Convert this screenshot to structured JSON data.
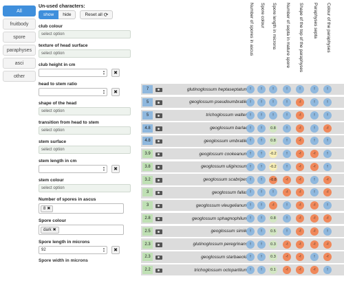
{
  "categories": [
    {
      "label": "All",
      "active": true
    },
    {
      "label": "fruitbody",
      "active": false
    },
    {
      "label": "spore",
      "active": false
    },
    {
      "label": "paraphyses",
      "active": false
    },
    {
      "label": "asci",
      "active": false
    },
    {
      "label": "other",
      "active": false
    }
  ],
  "unused": {
    "label": "Un-used characters:",
    "show": "show",
    "hide": "hide",
    "reset": "Reset all",
    "reset_icon": "⟳"
  },
  "filters": [
    {
      "label": "club colour",
      "type": "select",
      "value": "select option"
    },
    {
      "label": "texture of head surface",
      "type": "select",
      "value": "select option"
    },
    {
      "label": "club height in cm",
      "type": "number",
      "value": ""
    },
    {
      "label": "head to stem ratio",
      "type": "number",
      "value": ""
    },
    {
      "label": "shape of the head",
      "type": "select",
      "value": "select option"
    },
    {
      "label": "transition from head to stem",
      "type": "select",
      "value": "select option"
    },
    {
      "label": "stem surface",
      "type": "select",
      "value": "select option"
    },
    {
      "label": "stem length in cm",
      "type": "number",
      "value": ""
    },
    {
      "label": "stem colour",
      "type": "select",
      "value": "select option"
    },
    {
      "label": "Number of spores in ascus",
      "type": "tag",
      "value": "8"
    },
    {
      "label": "Spore colour",
      "type": "tag",
      "value": "dark"
    },
    {
      "label": "Spore length in microns",
      "type": "number",
      "value": "92"
    }
  ],
  "cutoff_label": "Spore width in microns",
  "columns": [
    "Number of spores in ascus",
    "Spore colour",
    "Spore length in microns",
    "Number of septa in mature spore",
    "Shape of the top of the paraphyses",
    "Paraphyses septa",
    "Colour of the paraphyses"
  ],
  "rows": [
    {
      "score": "7",
      "name": "glutinoglossum heptaseptatum",
      "cells": [
        "!",
        "!",
        "!",
        "!",
        "!",
        "!",
        "!"
      ]
    },
    {
      "score": "5",
      "name": "geoglossum pseudoumbratile",
      "cells": [
        "!",
        "!",
        "!",
        "!",
        "-!",
        "!",
        "!"
      ]
    },
    {
      "score": "5",
      "name": "trichoglossum walteri",
      "cells": [
        "!",
        "!",
        "!",
        "!",
        "-!",
        "!",
        "!"
      ]
    },
    {
      "score": "4.8",
      "name": "geoglossum barlae",
      "cells": [
        "!",
        "!",
        "0.8",
        "!",
        "-!",
        "!",
        "-!"
      ]
    },
    {
      "score": "4.8",
      "name": "geoglossum umbratile",
      "cells": [
        "!",
        "!",
        "0.8",
        "!",
        "-!",
        "!",
        "!"
      ]
    },
    {
      "score": "3.9",
      "name": "geoglossum cookeanum",
      "cells": [
        "!",
        "!",
        "-0.2",
        "!",
        "-!",
        "-!",
        "!"
      ]
    },
    {
      "score": "3.8",
      "name": "geoglossum uliginosum",
      "cells": [
        "!",
        "!",
        "-0.2",
        "!",
        "-!",
        "-!",
        "!"
      ]
    },
    {
      "score": "3.2",
      "name": "geoglossum scabripes",
      "cells": [
        "!",
        "!",
        "-0.8",
        "-!",
        "-!",
        "!",
        "-!"
      ]
    },
    {
      "score": "3",
      "name": "geoglossum fallax",
      "cells": [
        "!",
        "!",
        "!",
        "-!",
        "-!",
        "!",
        "-!"
      ]
    },
    {
      "score": "3",
      "name": "geoglossum vleugelianum",
      "cells": [
        "!",
        "!",
        "-!",
        "!",
        "-!",
        "-!",
        "!"
      ]
    },
    {
      "score": "2.8",
      "name": "geoglossum sphagnophilum",
      "cells": [
        "!",
        "!",
        "0.8",
        "!",
        "-!",
        "-!",
        "-!"
      ]
    },
    {
      "score": "2.5",
      "name": "geoglossum simile",
      "cells": [
        "!",
        "!",
        "0.5",
        "!",
        "-!",
        "-!",
        "!"
      ]
    },
    {
      "score": "2.3",
      "name": "glutinoglossum peregrinans",
      "cells": [
        "!",
        "!",
        "0.3",
        "-!",
        "-!",
        "-!",
        "-!"
      ]
    },
    {
      "score": "2.3",
      "name": "geoglossum starbaeckii",
      "cells": [
        "!",
        "!",
        "0.3",
        "-!",
        "-!",
        "!",
        "-!"
      ]
    },
    {
      "score": "2.2",
      "name": "trichoglossum octopartitum",
      "cells": [
        "!",
        "!",
        "0.1",
        "-!",
        "-!",
        "-!",
        "!"
      ]
    }
  ]
}
